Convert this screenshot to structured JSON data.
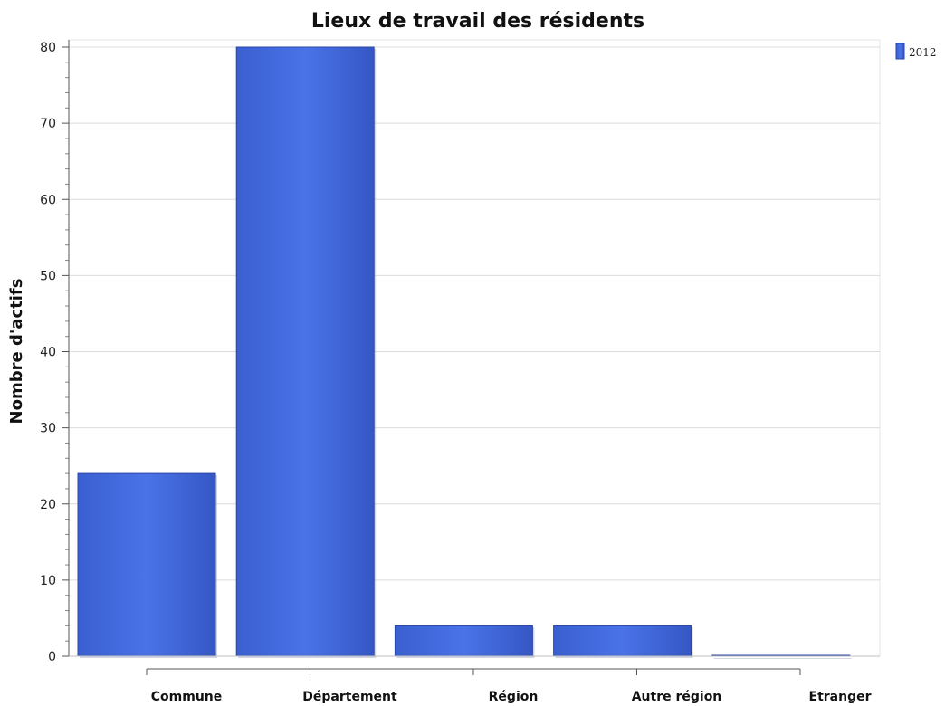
{
  "chart_data": {
    "type": "bar",
    "title": "Lieux de travail des résidents",
    "xlabel": "",
    "ylabel": "Nombre d'actifs",
    "categories": [
      "Commune",
      "Département",
      "Région",
      "Autre région",
      "Etranger"
    ],
    "series": [
      {
        "name": "2012",
        "values": [
          24,
          80,
          4,
          4,
          0
        ],
        "color": "#4169E1"
      }
    ],
    "ylim": [
      0,
      80
    ],
    "yticks": [
      0,
      10,
      20,
      30,
      40,
      50,
      60,
      70,
      80
    ],
    "grid": true,
    "legend_position": "top-right"
  }
}
